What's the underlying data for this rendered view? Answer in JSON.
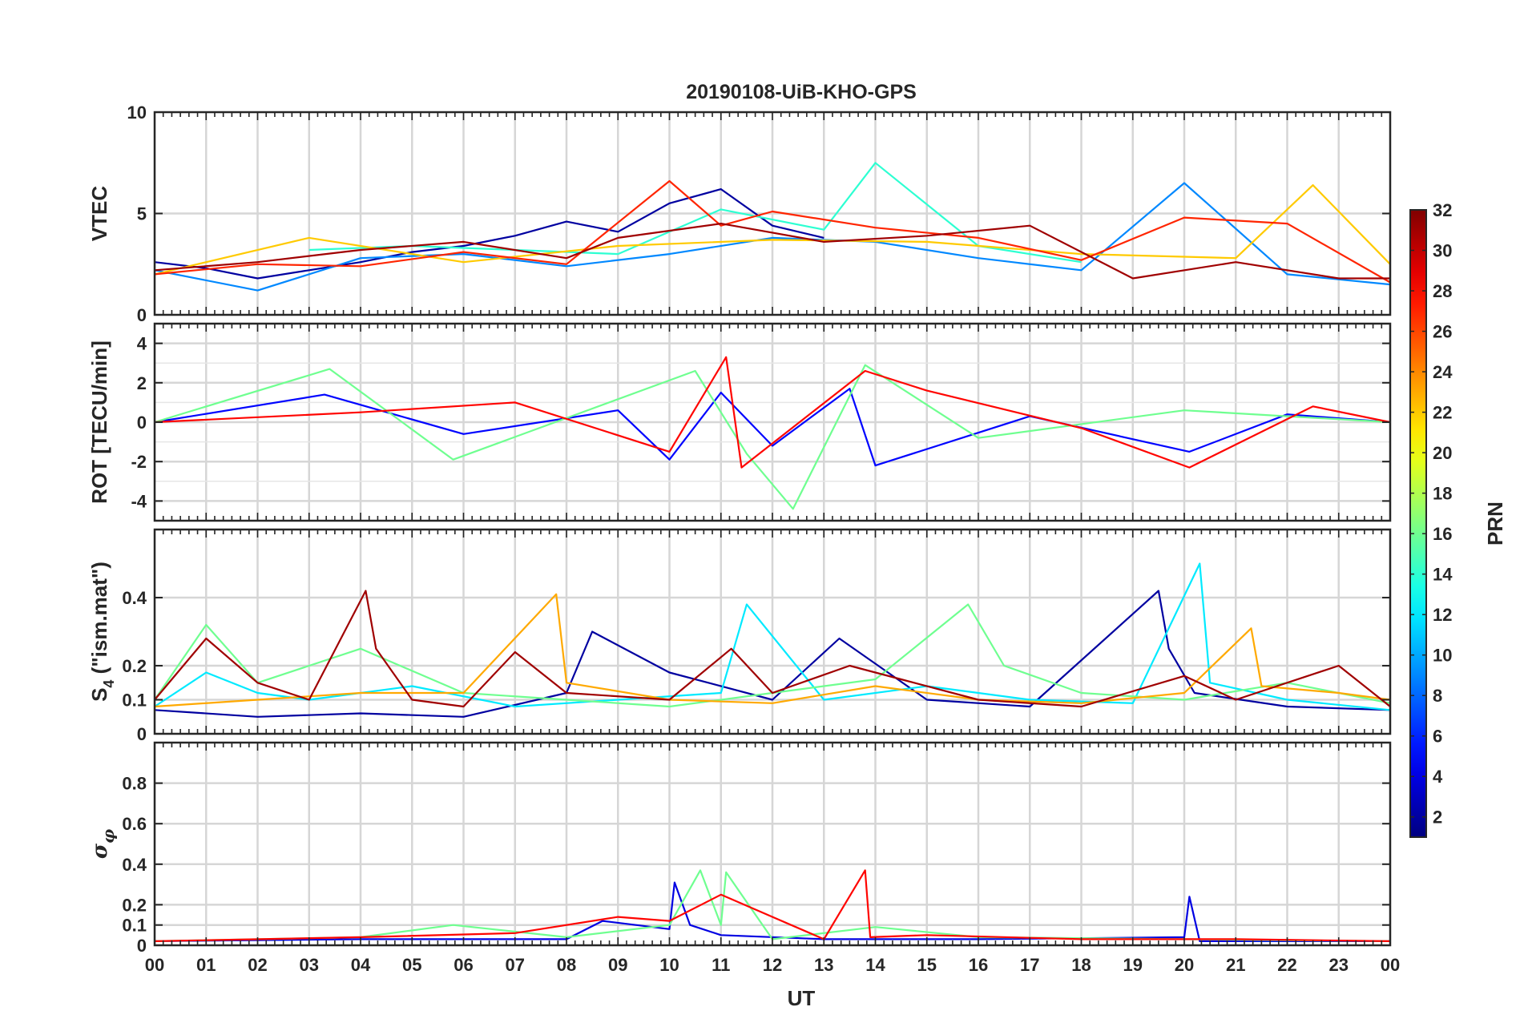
{
  "title": "20190108-UiB-KHO-GPS",
  "x_label": "UT",
  "x_ticks": [
    "00",
    "01",
    "02",
    "03",
    "04",
    "05",
    "06",
    "07",
    "08",
    "09",
    "10",
    "11",
    "12",
    "13",
    "14",
    "15",
    "16",
    "17",
    "18",
    "19",
    "20",
    "21",
    "22",
    "23",
    "00"
  ],
  "colorbar": {
    "label": "PRN",
    "range": [
      1,
      32
    ],
    "ticks": [
      "2",
      "4",
      "6",
      "8",
      "10",
      "12",
      "14",
      "16",
      "18",
      "20",
      "22",
      "24",
      "26",
      "28",
      "30",
      "32"
    ],
    "colormap": "jet"
  },
  "chart_data": [
    {
      "type": "line",
      "panel": "vtec",
      "ylabel": "VTEC",
      "ylim": [
        0,
        10
      ],
      "yticks": [
        "0",
        "5",
        "10"
      ],
      "grid": true,
      "xlim_hours": [
        0,
        24
      ],
      "series_color_by": "PRN",
      "series": [
        {
          "prn": 2,
          "x": [
            0,
            1,
            2,
            3,
            4,
            5,
            6,
            7,
            8,
            9,
            10,
            11,
            12,
            13
          ],
          "y": [
            2.6,
            2.3,
            1.8,
            2.2,
            2.6,
            3.1,
            3.4,
            3.9,
            4.6,
            4.1,
            5.5,
            6.2,
            4.4,
            3.8
          ]
        },
        {
          "prn": 9,
          "x": [
            0,
            2,
            4,
            6,
            8,
            10,
            12,
            14,
            16,
            18,
            20,
            22,
            24
          ],
          "y": [
            2.2,
            1.2,
            2.8,
            3.0,
            2.4,
            3.0,
            3.8,
            3.6,
            2.8,
            2.2,
            6.5,
            2.0,
            1.5
          ]
        },
        {
          "prn": 14,
          "x": [
            3,
            5,
            7,
            9,
            11,
            13,
            14,
            16,
            18
          ],
          "y": [
            3.2,
            3.4,
            3.2,
            3.0,
            5.2,
            4.2,
            7.5,
            3.4,
            2.6
          ]
        },
        {
          "prn": 22,
          "x": [
            0,
            3,
            6,
            9,
            12,
            15,
            18,
            21,
            22.5,
            24
          ],
          "y": [
            2.0,
            3.8,
            2.6,
            3.4,
            3.7,
            3.6,
            3.0,
            2.8,
            6.4,
            2.5
          ]
        },
        {
          "prn": 27,
          "x": [
            0,
            2,
            4,
            6,
            8,
            10,
            11,
            12,
            14,
            16,
            18,
            20,
            22,
            24
          ],
          "y": [
            2.0,
            2.5,
            2.4,
            3.1,
            2.5,
            6.6,
            4.4,
            5.1,
            4.3,
            3.8,
            2.7,
            4.8,
            4.5,
            1.6
          ]
        },
        {
          "prn": 31,
          "x": [
            0,
            2,
            4,
            6,
            8,
            9,
            11,
            13,
            15,
            17,
            19,
            21,
            23,
            24
          ],
          "y": [
            2.2,
            2.6,
            3.2,
            3.6,
            2.8,
            3.8,
            4.5,
            3.6,
            3.9,
            4.4,
            1.8,
            2.6,
            1.8,
            1.8
          ]
        }
      ]
    },
    {
      "type": "line",
      "panel": "rot",
      "ylabel": "ROT [TECU/min]",
      "ylim": [
        -5,
        5
      ],
      "yticks": [
        "-4",
        "-2",
        "0",
        "2",
        "4"
      ],
      "grid": true,
      "xlim_hours": [
        0,
        24
      ],
      "series_color_by": "PRN",
      "series": [
        {
          "prn": 5,
          "x": [
            0,
            3.3,
            6,
            9,
            10,
            11,
            12,
            13.5,
            14,
            17,
            20.1,
            22,
            24
          ],
          "y": [
            0,
            1.4,
            -0.6,
            0.6,
            -1.9,
            1.5,
            -1.2,
            1.7,
            -2.2,
            0.3,
            -1.5,
            0.4,
            0
          ]
        },
        {
          "prn": 16,
          "x": [
            0,
            3.4,
            5.8,
            10.5,
            11.5,
            12.4,
            13.8,
            16,
            20,
            24
          ],
          "y": [
            0,
            2.7,
            -1.9,
            2.6,
            -1.6,
            -4.4,
            2.9,
            -0.8,
            0.6,
            0
          ]
        },
        {
          "prn": 28,
          "x": [
            0,
            4,
            7,
            10,
            11.1,
            11.4,
            13.8,
            15,
            18,
            20.1,
            22.5,
            24
          ],
          "y": [
            0,
            0.5,
            1.0,
            -1.5,
            3.3,
            -2.3,
            2.6,
            1.6,
            -0.3,
            -2.3,
            0.8,
            0
          ]
        }
      ]
    },
    {
      "type": "line",
      "panel": "s4",
      "ylabel": "S4 (\"ism.mat\")",
      "ylim": [
        0,
        0.6
      ],
      "yticks": [
        "0",
        "0.1",
        "0.2",
        "0.4"
      ],
      "grid": true,
      "xlim_hours": [
        0,
        24
      ],
      "series_color_by": "PRN",
      "series": [
        {
          "prn": 2,
          "x": [
            0,
            2,
            4,
            6,
            8,
            8.5,
            10,
            12,
            13.3,
            15,
            17,
            19.5,
            19.7,
            20.2,
            22,
            24
          ],
          "y": [
            0.07,
            0.05,
            0.06,
            0.05,
            0.12,
            0.3,
            0.18,
            0.1,
            0.28,
            0.1,
            0.08,
            0.42,
            0.25,
            0.12,
            0.08,
            0.07
          ]
        },
        {
          "prn": 12,
          "x": [
            0,
            1,
            2,
            3,
            5,
            7,
            9,
            11,
            11.5,
            13,
            15,
            17,
            19,
            20.3,
            20.5,
            22,
            24
          ],
          "y": [
            0.08,
            0.18,
            0.12,
            0.1,
            0.14,
            0.08,
            0.1,
            0.12,
            0.38,
            0.1,
            0.14,
            0.1,
            0.09,
            0.5,
            0.15,
            0.1,
            0.07
          ]
        },
        {
          "prn": 16,
          "x": [
            0,
            1,
            2,
            4,
            6,
            8,
            10,
            12,
            14,
            15.8,
            16.5,
            18,
            20,
            22,
            24
          ],
          "y": [
            0.1,
            0.32,
            0.15,
            0.25,
            0.12,
            0.1,
            0.08,
            0.12,
            0.16,
            0.38,
            0.2,
            0.12,
            0.1,
            0.15,
            0.09
          ]
        },
        {
          "prn": 23,
          "x": [
            0,
            2,
            4,
            6,
            7.8,
            8,
            10,
            12,
            14,
            16,
            18,
            20,
            21.3,
            21.5,
            23,
            24
          ],
          "y": [
            0.08,
            0.1,
            0.12,
            0.12,
            0.41,
            0.15,
            0.1,
            0.09,
            0.14,
            0.1,
            0.09,
            0.12,
            0.31,
            0.14,
            0.12,
            0.1
          ]
        },
        {
          "prn": 31,
          "x": [
            0,
            1,
            2,
            3,
            4.1,
            4.3,
            5,
            6,
            7,
            8,
            10,
            11.2,
            12,
            13.5,
            14.5,
            16,
            18,
            20,
            21,
            23,
            24
          ],
          "y": [
            0.1,
            0.28,
            0.15,
            0.1,
            0.42,
            0.25,
            0.1,
            0.08,
            0.24,
            0.12,
            0.1,
            0.25,
            0.12,
            0.2,
            0.16,
            0.1,
            0.08,
            0.17,
            0.1,
            0.2,
            0.08
          ]
        }
      ]
    },
    {
      "type": "line",
      "panel": "sigma_phi",
      "ylabel": "σφ",
      "ylim": [
        0,
        1
      ],
      "yticks": [
        "0",
        "0.1",
        "0.2",
        "0.4",
        "0.6",
        "0.8"
      ],
      "grid": true,
      "xlim_hours": [
        0,
        24
      ],
      "series_color_by": "PRN",
      "series": [
        {
          "prn": 4,
          "x": [
            0,
            4,
            8,
            8.7,
            10,
            10.1,
            10.4,
            11,
            13,
            16,
            20,
            20.1,
            20.3,
            24
          ],
          "y": [
            0.02,
            0.03,
            0.03,
            0.12,
            0.08,
            0.31,
            0.1,
            0.05,
            0.03,
            0.03,
            0.04,
            0.24,
            0.02,
            0.02
          ]
        },
        {
          "prn": 16,
          "x": [
            0,
            4,
            5.8,
            8,
            10,
            10.6,
            11,
            11.1,
            12,
            14,
            16,
            20,
            24
          ],
          "y": [
            0.02,
            0.04,
            0.1,
            0.04,
            0.1,
            0.37,
            0.1,
            0.36,
            0.03,
            0.09,
            0.04,
            0.03,
            0.02
          ]
        },
        {
          "prn": 28,
          "x": [
            0,
            4,
            7,
            9,
            10,
            11,
            13,
            13.8,
            13.9,
            15,
            18,
            21,
            24
          ],
          "y": [
            0.02,
            0.04,
            0.06,
            0.14,
            0.12,
            0.25,
            0.03,
            0.37,
            0.04,
            0.05,
            0.03,
            0.03,
            0.02
          ]
        }
      ]
    }
  ]
}
